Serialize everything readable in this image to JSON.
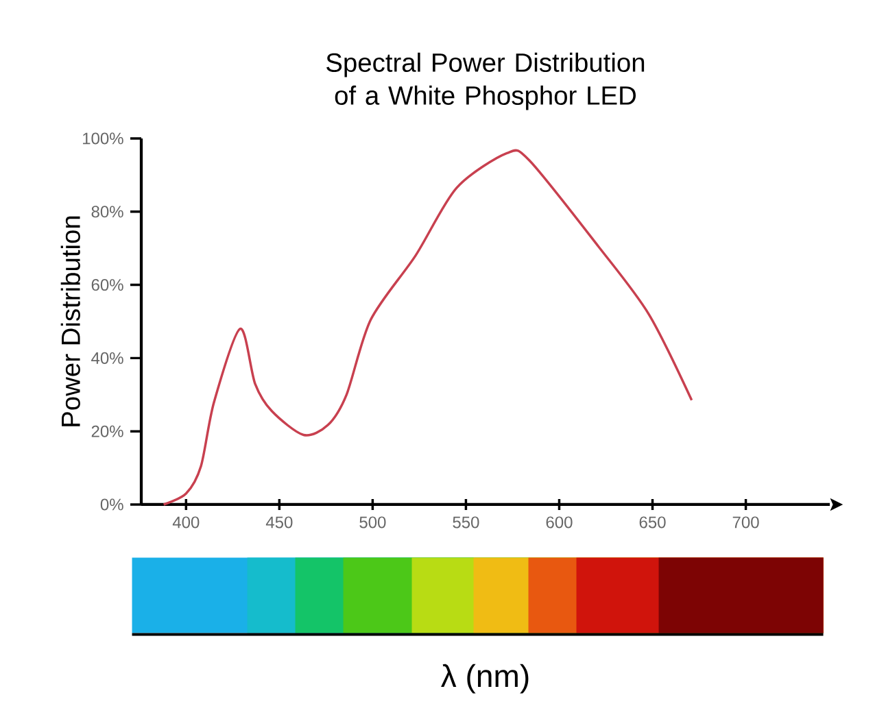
{
  "chart_data": {
    "type": "line",
    "title": "Spectral Power Distribution of a White Phosphor LED",
    "xlabel": "λ (nm)",
    "ylabel": "Power Distribution",
    "x": [
      388,
      400,
      408,
      415,
      429,
      437,
      446,
      463,
      476,
      486,
      499,
      523,
      545,
      572,
      584,
      621,
      648,
      671
    ],
    "series": [
      {
        "color": "#c8404f",
        "values": [
          0,
          3,
          10.5,
          28,
          48,
          33,
          25.5,
          19,
          21.7,
          30,
          50.5,
          68,
          86.5,
          96,
          94,
          70.5,
          52,
          28.5
        ]
      }
    ],
    "xlim": [
      376,
      745
    ],
    "ylim": [
      0,
      100
    ],
    "xticks": [
      400,
      450,
      500,
      550,
      600,
      650,
      700
    ],
    "yticks": [
      {
        "value": 0,
        "label": "0%"
      },
      {
        "value": 20,
        "label": "20%"
      },
      {
        "value": 40,
        "label": "40%"
      },
      {
        "value": 60,
        "label": "60%"
      },
      {
        "value": 80,
        "label": "80%"
      },
      {
        "value": 100,
        "label": "100%"
      }
    ],
    "grid": false,
    "marker": "none",
    "line_style": "solid"
  }
}
